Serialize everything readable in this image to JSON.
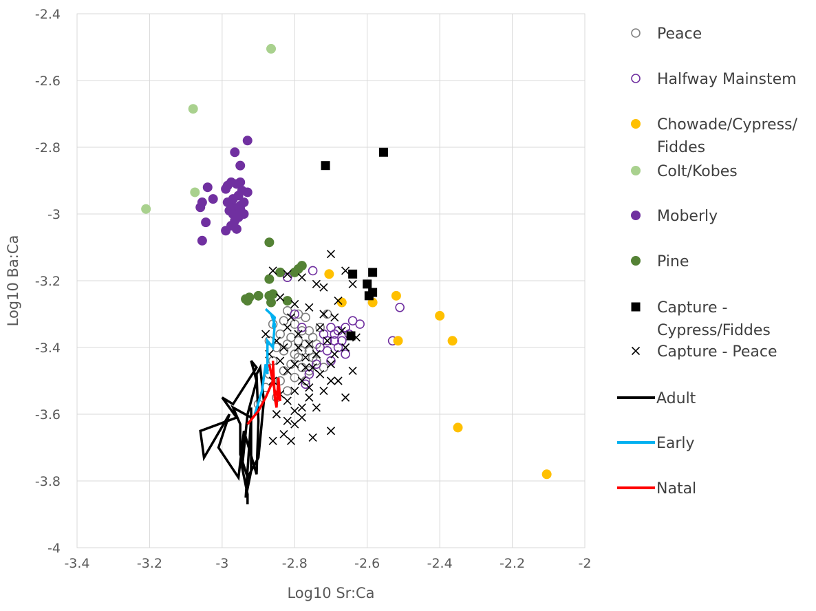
{
  "chart_data": {
    "type": "scatter",
    "xlabel": "Log10 Sr:Ca",
    "ylabel": "Log10 Ba:Ca",
    "xlim": [
      -3.4,
      -2.0
    ],
    "ylim": [
      -4.0,
      -2.4
    ],
    "x_ticks": [
      -3.4,
      -3.2,
      -3.0,
      -2.8,
      -2.6,
      -2.4,
      -2.2,
      -2.0
    ],
    "y_ticks": [
      -2.4,
      -2.6,
      -2.8,
      -3.0,
      -3.2,
      -3.4,
      -3.6,
      -3.8,
      -4.0
    ],
    "x_tick_labels": [
      "-3.4",
      "-3.2",
      "-3",
      "-2.8",
      "-2.6",
      "-2.4",
      "-2.2",
      "-2"
    ],
    "y_tick_labels": [
      "-2.4",
      "-2.6",
      "-2.8",
      "-3",
      "-3.2",
      "-3.4",
      "-3.6",
      "-3.8",
      "-4"
    ],
    "grid": "major",
    "legend_position": "right",
    "series": [
      {
        "name": "Peace",
        "marker": "open-circle",
        "color": "#808080",
        "points": [
          [
            -2.9,
            -3.57
          ],
          [
            -2.88,
            -3.52
          ],
          [
            -2.87,
            -3.48
          ],
          [
            -2.86,
            -3.44
          ],
          [
            -2.85,
            -3.4
          ],
          [
            -2.84,
            -3.36
          ],
          [
            -2.83,
            -3.32
          ],
          [
            -2.82,
            -3.29
          ],
          [
            -2.81,
            -3.45
          ],
          [
            -2.8,
            -3.42
          ],
          [
            -2.79,
            -3.38
          ],
          [
            -2.78,
            -3.35
          ],
          [
            -2.77,
            -3.31
          ],
          [
            -2.76,
            -3.47
          ],
          [
            -2.75,
            -3.43
          ],
          [
            -2.74,
            -3.39
          ],
          [
            -2.73,
            -3.34
          ],
          [
            -2.72,
            -3.46
          ],
          [
            -2.71,
            -3.3
          ],
          [
            -2.84,
            -3.5
          ],
          [
            -2.82,
            -3.53
          ],
          [
            -2.8,
            -3.49
          ],
          [
            -2.78,
            -3.46
          ],
          [
            -2.76,
            -3.41
          ],
          [
            -2.86,
            -3.33
          ],
          [
            -2.83,
            -3.41
          ],
          [
            -2.81,
            -3.37
          ],
          [
            -2.79,
            -3.3
          ],
          [
            -2.77,
            -3.5
          ],
          [
            -2.75,
            -3.37
          ],
          [
            -2.85,
            -3.55
          ],
          [
            -2.83,
            -3.47
          ],
          [
            -2.8,
            -3.33
          ],
          [
            -2.78,
            -3.41
          ],
          [
            -2.76,
            -3.35
          ],
          [
            -2.74,
            -3.44
          ],
          [
            -2.82,
            -3.39
          ],
          [
            -2.79,
            -3.43
          ],
          [
            -2.77,
            -3.39
          ],
          [
            -2.87,
            -3.38
          ]
        ]
      },
      {
        "name": "Halfway Mainstem",
        "marker": "open-circle",
        "color": "#7030A0",
        "points": [
          [
            -2.82,
            -3.19
          ],
          [
            -2.75,
            -3.17
          ],
          [
            -2.7,
            -3.34
          ],
          [
            -2.68,
            -3.35
          ],
          [
            -2.66,
            -3.34
          ],
          [
            -2.64,
            -3.32
          ],
          [
            -2.62,
            -3.33
          ],
          [
            -2.69,
            -3.38
          ],
          [
            -2.71,
            -3.41
          ],
          [
            -2.67,
            -3.38
          ],
          [
            -2.65,
            -3.36
          ],
          [
            -2.72,
            -3.36
          ],
          [
            -2.73,
            -3.4
          ],
          [
            -2.74,
            -3.45
          ],
          [
            -2.76,
            -3.48
          ],
          [
            -2.77,
            -3.51
          ],
          [
            -2.68,
            -3.4
          ],
          [
            -2.7,
            -3.44
          ],
          [
            -2.66,
            -3.42
          ],
          [
            -2.53,
            -3.38
          ],
          [
            -2.51,
            -3.28
          ],
          [
            -2.8,
            -3.3
          ],
          [
            -2.78,
            -3.34
          ],
          [
            -2.69,
            -3.36
          ],
          [
            -2.71,
            -3.38
          ]
        ]
      },
      {
        "name": "Chowade/Cypress/Fiddes",
        "marker": "filled-circle",
        "color": "#FFC000",
        "points": [
          [
            -2.705,
            -3.18
          ],
          [
            -2.67,
            -3.265
          ],
          [
            -2.585,
            -3.265
          ],
          [
            -2.52,
            -3.245
          ],
          [
            -2.515,
            -3.38
          ],
          [
            -2.4,
            -3.305
          ],
          [
            -2.365,
            -3.38
          ],
          [
            -2.35,
            -3.64
          ],
          [
            -2.105,
            -3.78
          ]
        ]
      },
      {
        "name": "Colt/Kobes",
        "marker": "filled-circle",
        "color": "#A9D18E",
        "points": [
          [
            -2.865,
            -2.505
          ],
          [
            -3.08,
            -2.685
          ],
          [
            -3.21,
            -2.985
          ],
          [
            -3.075,
            -2.935
          ]
        ]
      },
      {
        "name": "Moberly",
        "marker": "filled-circle",
        "color": "#7030A0",
        "points": [
          [
            -2.93,
            -2.78
          ],
          [
            -2.965,
            -2.815
          ],
          [
            -2.95,
            -2.855
          ],
          [
            -2.95,
            -2.905
          ],
          [
            -2.96,
            -2.91
          ],
          [
            -2.975,
            -2.905
          ],
          [
            -2.985,
            -2.915
          ],
          [
            -2.99,
            -2.925
          ],
          [
            -2.93,
            -2.935
          ],
          [
            -2.945,
            -2.93
          ],
          [
            -2.955,
            -2.945
          ],
          [
            -2.97,
            -2.955
          ],
          [
            -2.975,
            -2.97
          ],
          [
            -2.985,
            -2.965
          ],
          [
            -2.95,
            -2.975
          ],
          [
            -2.94,
            -2.965
          ],
          [
            -2.96,
            -2.99
          ],
          [
            -2.97,
            -3.0
          ],
          [
            -2.955,
            -3.01
          ],
          [
            -2.965,
            -3.02
          ],
          [
            -2.94,
            -3.0
          ],
          [
            -2.975,
            -3.035
          ],
          [
            -2.96,
            -3.045
          ],
          [
            -2.99,
            -3.05
          ],
          [
            -3.04,
            -2.92
          ],
          [
            -3.025,
            -2.955
          ],
          [
            -3.055,
            -2.965
          ],
          [
            -3.06,
            -2.98
          ],
          [
            -3.045,
            -3.025
          ],
          [
            -3.055,
            -3.08
          ],
          [
            -2.95,
            -2.985
          ],
          [
            -2.98,
            -2.99
          ]
        ]
      },
      {
        "name": "Pine",
        "marker": "filled-circle",
        "color": "#548235",
        "points": [
          [
            -2.87,
            -3.085
          ],
          [
            -2.78,
            -3.155
          ],
          [
            -2.79,
            -3.165
          ],
          [
            -2.8,
            -3.175
          ],
          [
            -2.84,
            -3.175
          ],
          [
            -2.87,
            -3.195
          ],
          [
            -2.87,
            -3.245
          ],
          [
            -2.86,
            -3.24
          ],
          [
            -2.82,
            -3.26
          ],
          [
            -2.865,
            -3.265
          ],
          [
            -2.9,
            -3.245
          ],
          [
            -2.925,
            -3.25
          ],
          [
            -2.935,
            -3.255
          ],
          [
            -2.93,
            -3.26
          ]
        ]
      },
      {
        "name": "Capture - Cypress/Fiddes",
        "marker": "filled-square",
        "color": "#000000",
        "points": [
          [
            -2.555,
            -2.815
          ],
          [
            -2.715,
            -2.855
          ],
          [
            -2.64,
            -3.18
          ],
          [
            -2.585,
            -3.175
          ],
          [
            -2.6,
            -3.21
          ],
          [
            -2.585,
            -3.235
          ],
          [
            -2.595,
            -3.245
          ],
          [
            -2.645,
            -3.365
          ]
        ]
      },
      {
        "name": "Capture - Peace",
        "marker": "x",
        "color": "#000000",
        "points": [
          [
            -2.7,
            -3.12
          ],
          [
            -2.86,
            -3.17
          ],
          [
            -2.82,
            -3.18
          ],
          [
            -2.78,
            -3.19
          ],
          [
            -2.74,
            -3.21
          ],
          [
            -2.72,
            -3.22
          ],
          [
            -2.66,
            -3.17
          ],
          [
            -2.64,
            -3.21
          ],
          [
            -2.84,
            -3.25
          ],
          [
            -2.8,
            -3.27
          ],
          [
            -2.76,
            -3.28
          ],
          [
            -2.72,
            -3.3
          ],
          [
            -2.68,
            -3.26
          ],
          [
            -2.88,
            -3.36
          ],
          [
            -2.85,
            -3.38
          ],
          [
            -2.82,
            -3.34
          ],
          [
            -2.79,
            -3.4
          ],
          [
            -2.76,
            -3.39
          ],
          [
            -2.74,
            -3.42
          ],
          [
            -2.7,
            -3.45
          ],
          [
            -2.66,
            -3.4
          ],
          [
            -2.63,
            -3.37
          ],
          [
            -2.84,
            -3.44
          ],
          [
            -2.82,
            -3.47
          ],
          [
            -2.8,
            -3.45
          ],
          [
            -2.78,
            -3.5
          ],
          [
            -2.76,
            -3.52
          ],
          [
            -2.73,
            -3.48
          ],
          [
            -2.7,
            -3.5
          ],
          [
            -2.86,
            -3.5
          ],
          [
            -2.84,
            -3.54
          ],
          [
            -2.82,
            -3.56
          ],
          [
            -2.8,
            -3.53
          ],
          [
            -2.78,
            -3.58
          ],
          [
            -2.76,
            -3.55
          ],
          [
            -2.72,
            -3.53
          ],
          [
            -2.68,
            -3.5
          ],
          [
            -2.64,
            -3.47
          ],
          [
            -2.85,
            -3.6
          ],
          [
            -2.82,
            -3.62
          ],
          [
            -2.8,
            -3.59
          ],
          [
            -2.78,
            -3.61
          ],
          [
            -2.75,
            -3.67
          ],
          [
            -2.7,
            -3.65
          ],
          [
            -2.66,
            -3.55
          ],
          [
            -2.83,
            -3.66
          ],
          [
            -2.81,
            -3.68
          ],
          [
            -2.86,
            -3.68
          ],
          [
            -2.81,
            -3.31
          ],
          [
            -2.79,
            -3.36
          ],
          [
            -2.77,
            -3.43
          ],
          [
            -2.75,
            -3.46
          ],
          [
            -2.73,
            -3.34
          ],
          [
            -2.71,
            -3.38
          ],
          [
            -2.69,
            -3.31
          ],
          [
            -2.67,
            -3.35
          ],
          [
            -2.83,
            -3.4
          ],
          [
            -2.87,
            -3.42
          ],
          [
            -2.8,
            -3.63
          ],
          [
            -2.77,
            -3.46
          ],
          [
            -2.74,
            -3.58
          ],
          [
            -2.69,
            -3.42
          ]
        ]
      }
    ],
    "lines": [
      {
        "name": "Adult",
        "color": "#000000",
        "points": [
          [
            -2.93,
            -3.87
          ],
          [
            -2.93,
            -3.84
          ],
          [
            -2.945,
            -3.76
          ],
          [
            -2.93,
            -3.6
          ],
          [
            -2.905,
            -3.5
          ],
          [
            -2.92,
            -3.44
          ],
          [
            -2.905,
            -3.46
          ],
          [
            -2.97,
            -3.57
          ],
          [
            -3.0,
            -3.55
          ],
          [
            -2.96,
            -3.61
          ],
          [
            -3.06,
            -3.65
          ],
          [
            -3.05,
            -3.73
          ],
          [
            -2.98,
            -3.6
          ],
          [
            -3.01,
            -3.7
          ],
          [
            -2.955,
            -3.79
          ],
          [
            -2.94,
            -3.65
          ],
          [
            -2.905,
            -3.78
          ],
          [
            -2.9,
            -3.62
          ],
          [
            -2.905,
            -3.48
          ],
          [
            -2.895,
            -3.46
          ],
          [
            -2.885,
            -3.56
          ],
          [
            -2.9,
            -3.73
          ],
          [
            -2.93,
            -3.79
          ],
          [
            -2.95,
            -3.72
          ],
          [
            -2.95,
            -3.63
          ],
          [
            -2.97,
            -3.58
          ],
          [
            -2.92,
            -3.61
          ],
          [
            -2.935,
            -3.85
          ],
          [
            -2.92,
            -3.77
          ],
          [
            -2.92,
            -3.58
          ]
        ]
      },
      {
        "name": "Early",
        "color": "#00B0F0",
        "points": [
          [
            -2.91,
            -3.6
          ],
          [
            -2.89,
            -3.53
          ],
          [
            -2.88,
            -3.45
          ],
          [
            -2.875,
            -3.48
          ],
          [
            -2.875,
            -3.38
          ],
          [
            -2.86,
            -3.4
          ],
          [
            -2.855,
            -3.33
          ],
          [
            -2.865,
            -3.3
          ],
          [
            -2.88,
            -3.285
          ],
          [
            -2.855,
            -3.31
          ],
          [
            -2.86,
            -3.34
          ]
        ]
      },
      {
        "name": "Natal",
        "color": "#FF0000",
        "points": [
          [
            -2.93,
            -3.63
          ],
          [
            -2.9,
            -3.59
          ],
          [
            -2.88,
            -3.55
          ],
          [
            -2.86,
            -3.5
          ],
          [
            -2.86,
            -3.44
          ],
          [
            -2.855,
            -3.55
          ],
          [
            -2.85,
            -3.58
          ],
          [
            -2.845,
            -3.49
          ],
          [
            -2.84,
            -3.56
          ],
          [
            -2.855,
            -3.53
          ],
          [
            -2.87,
            -3.45
          ]
        ]
      }
    ]
  }
}
